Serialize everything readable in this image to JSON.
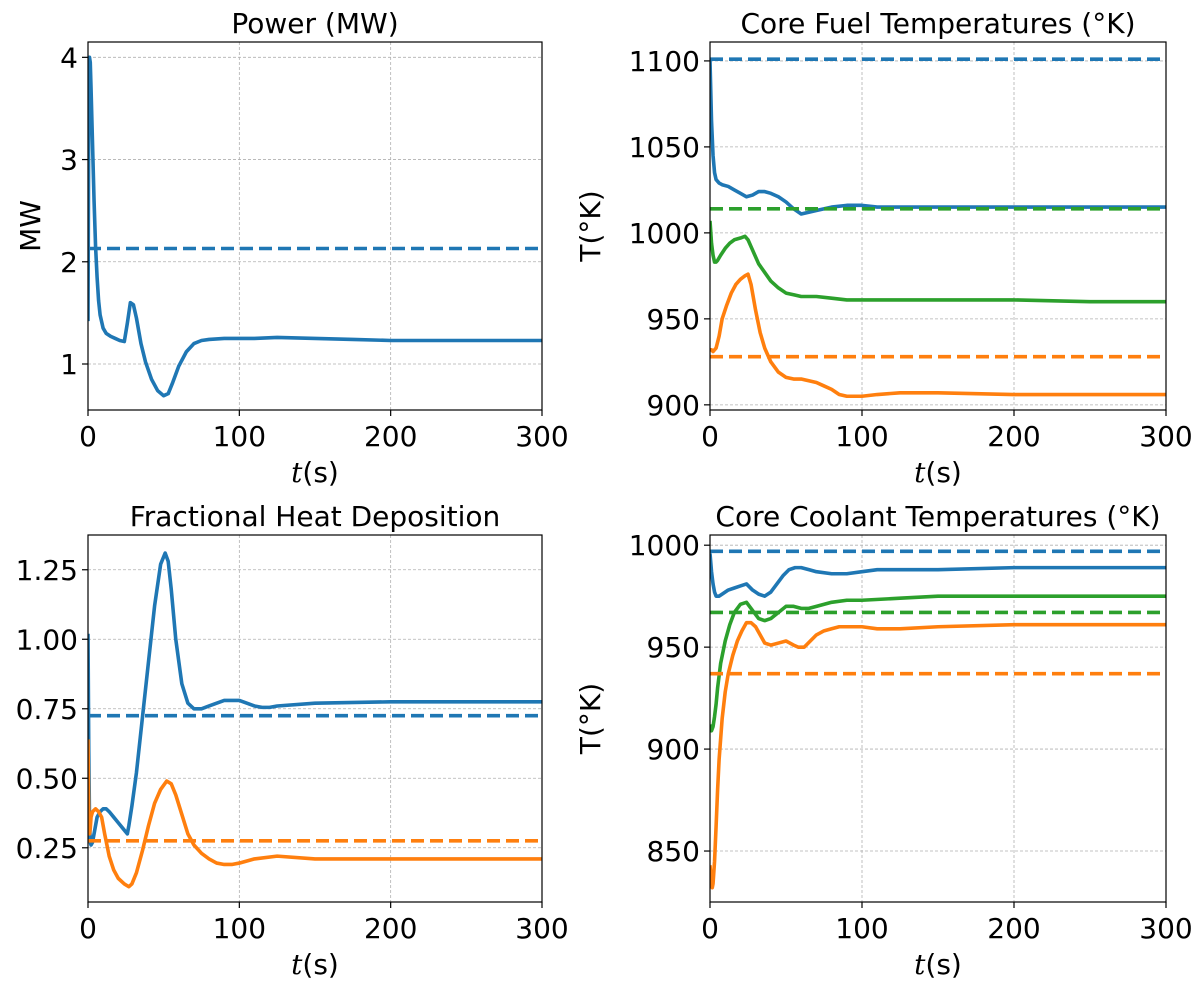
{
  "chart_data": [
    {
      "type": "line",
      "title": "Power (MW)",
      "xlabel_var": "t",
      "xlabel_unit": "(s)",
      "ylabel": "MW",
      "xlim": [
        0,
        300
      ],
      "ylim": [
        0.55,
        4.15
      ],
      "xticks": [
        0,
        100,
        200,
        300
      ],
      "yticks": [
        1,
        2,
        3,
        4
      ],
      "ytick_labels": [
        "1",
        "2",
        "3",
        "4"
      ],
      "grid": true,
      "series": [
        {
          "color": "#1f77b4",
          "style": "solid",
          "x": [
            0,
            0.5,
            1,
            1.5,
            2,
            3,
            4,
            5,
            6,
            7,
            8,
            10,
            12,
            15,
            18,
            21,
            24,
            26,
            28,
            30,
            32,
            35,
            38,
            42,
            46,
            50,
            53,
            56,
            60,
            65,
            70,
            75,
            80,
            90,
            100,
            110,
            125,
            150,
            175,
            200,
            250,
            300
          ],
          "y": [
            1.42,
            3.5,
            4.0,
            3.95,
            3.7,
            3.15,
            2.6,
            2.15,
            1.85,
            1.62,
            1.48,
            1.35,
            1.3,
            1.27,
            1.25,
            1.23,
            1.22,
            1.4,
            1.6,
            1.58,
            1.45,
            1.2,
            1.02,
            0.85,
            0.74,
            0.69,
            0.71,
            0.82,
            0.98,
            1.12,
            1.2,
            1.23,
            1.24,
            1.25,
            1.25,
            1.25,
            1.26,
            1.25,
            1.24,
            1.23,
            1.23,
            1.23
          ]
        },
        {
          "color": "#1f77b4",
          "style": "dashed",
          "x": [
            0,
            300
          ],
          "y": [
            2.13,
            2.13
          ]
        }
      ]
    },
    {
      "type": "line",
      "title": "Core Fuel Temperatures (°K)",
      "xlabel_var": "t",
      "xlabel_unit": "(s)",
      "ylabel": "T(°K)",
      "xlim": [
        0,
        300
      ],
      "ylim": [
        897,
        1111
      ],
      "xticks": [
        0,
        100,
        200,
        300
      ],
      "yticks": [
        900,
        950,
        1000,
        1050,
        1100
      ],
      "ytick_labels": [
        "900",
        "950",
        "1000",
        "1050",
        "1100"
      ],
      "grid": true,
      "series": [
        {
          "color": "#1f77b4",
          "style": "solid",
          "x": [
            0,
            1,
            2,
            3,
            4,
            6,
            8,
            12,
            16,
            20,
            24,
            28,
            32,
            36,
            40,
            45,
            50,
            55,
            60,
            65,
            70,
            80,
            90,
            100,
            110,
            125,
            150,
            200,
            250,
            300
          ],
          "y": [
            1100,
            1065,
            1045,
            1035,
            1031,
            1029,
            1028,
            1027,
            1025,
            1023,
            1021,
            1022,
            1024,
            1024,
            1023,
            1021,
            1018,
            1014,
            1011,
            1012,
            1013,
            1015,
            1016,
            1016,
            1015,
            1015,
            1015,
            1015,
            1015,
            1015
          ]
        },
        {
          "color": "#2ca02c",
          "style": "solid",
          "x": [
            0,
            1,
            2,
            3,
            4,
            5,
            7,
            10,
            13,
            16,
            20,
            23,
            25,
            28,
            32,
            36,
            40,
            45,
            50,
            55,
            60,
            70,
            80,
            90,
            100,
            110,
            125,
            150,
            200,
            250,
            300
          ],
          "y": [
            1007,
            994,
            987,
            983,
            983,
            984,
            987,
            991,
            994,
            996,
            997,
            998,
            996,
            990,
            982,
            977,
            972,
            968,
            965,
            964,
            963,
            963,
            962,
            961,
            961,
            961,
            961,
            961,
            961,
            960,
            960
          ]
        },
        {
          "color": "#ff7f0e",
          "style": "solid",
          "x": [
            0,
            1,
            2,
            3,
            4,
            6,
            8,
            11,
            14,
            17,
            20,
            23,
            25,
            27,
            30,
            33,
            36,
            40,
            45,
            50,
            55,
            60,
            65,
            70,
            75,
            80,
            85,
            90,
            95,
            100,
            110,
            125,
            150,
            200,
            250,
            300
          ],
          "y": [
            932,
            932,
            931,
            932,
            933,
            940,
            950,
            958,
            965,
            970,
            973,
            975,
            976,
            970,
            955,
            942,
            933,
            925,
            919,
            916,
            915,
            915,
            914,
            913,
            911,
            909,
            906,
            905,
            905,
            905,
            906,
            907,
            907,
            906,
            906,
            906
          ]
        },
        {
          "color": "#1f77b4",
          "style": "dashed",
          "x": [
            0,
            300
          ],
          "y": [
            1101,
            1101
          ]
        },
        {
          "color": "#2ca02c",
          "style": "dashed",
          "x": [
            0,
            300
          ],
          "y": [
            1014,
            1014
          ]
        },
        {
          "color": "#ff7f0e",
          "style": "dashed",
          "x": [
            0,
            300
          ],
          "y": [
            928,
            928
          ]
        }
      ]
    },
    {
      "type": "line",
      "title": "Fractional Heat Deposition",
      "xlabel_var": "t",
      "xlabel_unit": "(s)",
      "ylabel": "",
      "xlim": [
        0,
        300
      ],
      "ylim": [
        0.055,
        1.375
      ],
      "xticks": [
        0,
        100,
        200,
        300
      ],
      "yticks": [
        0.25,
        0.5,
        0.75,
        1.0,
        1.25
      ],
      "ytick_labels": [
        "0.25",
        "0.50",
        "0.75",
        "1.00",
        "1.25"
      ],
      "grid": true,
      "series": [
        {
          "color": "#1f77b4",
          "style": "solid",
          "x": [
            0,
            0.5,
            1,
            1.5,
            2,
            3,
            4,
            6,
            8,
            10,
            12,
            14,
            17,
            20,
            23,
            26,
            27,
            29,
            32,
            36,
            40,
            44,
            48,
            51,
            53,
            55,
            58,
            62,
            66,
            70,
            75,
            80,
            85,
            90,
            95,
            100,
            105,
            110,
            115,
            120,
            125,
            150,
            200,
            250,
            300
          ],
          "y": [
            1.02,
            0.6,
            0.35,
            0.27,
            0.26,
            0.27,
            0.3,
            0.36,
            0.38,
            0.39,
            0.39,
            0.38,
            0.36,
            0.34,
            0.32,
            0.3,
            0.33,
            0.4,
            0.52,
            0.72,
            0.92,
            1.12,
            1.27,
            1.31,
            1.28,
            1.18,
            1.0,
            0.84,
            0.77,
            0.75,
            0.75,
            0.76,
            0.77,
            0.78,
            0.78,
            0.78,
            0.77,
            0.76,
            0.755,
            0.755,
            0.76,
            0.77,
            0.775,
            0.775,
            0.775
          ]
        },
        {
          "color": "#ff7f0e",
          "style": "solid",
          "x": [
            0,
            0.5,
            1,
            1.5,
            2,
            3,
            5,
            7,
            9,
            11,
            14,
            17,
            20,
            24,
            27,
            29,
            32,
            36,
            40,
            44,
            48,
            52,
            55,
            58,
            62,
            66,
            70,
            75,
            80,
            85,
            90,
            95,
            100,
            110,
            125,
            150,
            200,
            250,
            300
          ],
          "y": [
            0.64,
            0.38,
            0.3,
            0.32,
            0.36,
            0.38,
            0.39,
            0.38,
            0.36,
            0.3,
            0.22,
            0.17,
            0.14,
            0.12,
            0.11,
            0.12,
            0.16,
            0.24,
            0.33,
            0.41,
            0.46,
            0.49,
            0.48,
            0.44,
            0.37,
            0.3,
            0.26,
            0.23,
            0.21,
            0.195,
            0.19,
            0.19,
            0.195,
            0.21,
            0.22,
            0.21,
            0.21,
            0.21,
            0.21
          ]
        },
        {
          "color": "#1f77b4",
          "style": "dashed",
          "x": [
            0,
            300
          ],
          "y": [
            0.725,
            0.725
          ]
        },
        {
          "color": "#ff7f0e",
          "style": "dashed",
          "x": [
            0,
            300
          ],
          "y": [
            0.275,
            0.275
          ]
        }
      ]
    },
    {
      "type": "line",
      "title": "Core Coolant Temperatures (°K)",
      "xlabel_var": "t",
      "xlabel_unit": "(s)",
      "ylabel": "T(°K)",
      "xlim": [
        0,
        300
      ],
      "ylim": [
        825,
        1005
      ],
      "xticks": [
        0,
        100,
        200,
        300
      ],
      "yticks": [
        850,
        900,
        950,
        1000
      ],
      "ytick_labels": [
        "850",
        "900",
        "950",
        "1000"
      ],
      "grid": true,
      "series": [
        {
          "color": "#1f77b4",
          "style": "solid",
          "x": [
            0,
            1,
            2,
            3,
            4,
            6,
            8,
            12,
            16,
            20,
            24,
            28,
            32,
            36,
            40,
            44,
            48,
            52,
            56,
            60,
            65,
            70,
            80,
            90,
            100,
            110,
            125,
            150,
            200,
            250,
            300
          ],
          "y": [
            996,
            987,
            981,
            977,
            975,
            975,
            976,
            978,
            979,
            980,
            981,
            978,
            976,
            975,
            977,
            981,
            985,
            988,
            989,
            989,
            988,
            987,
            986,
            986,
            987,
            988,
            988,
            988,
            989,
            989,
            989
          ]
        },
        {
          "color": "#2ca02c",
          "style": "solid",
          "x": [
            0,
            1,
            2,
            3,
            4,
            5,
            7,
            10,
            13,
            16,
            20,
            24,
            28,
            32,
            36,
            40,
            45,
            50,
            55,
            60,
            65,
            70,
            80,
            90,
            100,
            125,
            150,
            200,
            250,
            300
          ],
          "y": [
            912,
            909,
            911,
            916,
            922,
            930,
            942,
            953,
            961,
            967,
            971,
            972,
            968,
            964,
            963,
            964,
            967,
            970,
            970,
            969,
            969,
            970,
            972,
            973,
            973,
            974,
            975,
            975,
            975,
            975
          ]
        },
        {
          "color": "#ff7f0e",
          "style": "solid",
          "x": [
            0,
            0.5,
            1,
            1.5,
            2,
            3,
            4,
            5,
            6,
            8,
            10,
            12,
            15,
            18,
            21,
            24,
            27,
            30,
            33,
            36,
            40,
            45,
            50,
            55,
            58,
            62,
            66,
            70,
            75,
            80,
            85,
            90,
            95,
            100,
            110,
            125,
            150,
            200,
            250,
            300
          ],
          "y": [
            843,
            838,
            834,
            832,
            834,
            845,
            862,
            880,
            895,
            915,
            928,
            937,
            946,
            953,
            958,
            962,
            962,
            960,
            956,
            952,
            951,
            952,
            953,
            951,
            950,
            950,
            953,
            956,
            958,
            959,
            960,
            960,
            960,
            960,
            959,
            959,
            960,
            961,
            961,
            961
          ]
        },
        {
          "color": "#1f77b4",
          "style": "dashed",
          "x": [
            0,
            300
          ],
          "y": [
            997,
            997
          ]
        },
        {
          "color": "#2ca02c",
          "style": "dashed",
          "x": [
            0,
            300
          ],
          "y": [
            967,
            967
          ]
        },
        {
          "color": "#ff7f0e",
          "style": "dashed",
          "x": [
            0,
            300
          ],
          "y": [
            937,
            937
          ]
        }
      ]
    }
  ]
}
